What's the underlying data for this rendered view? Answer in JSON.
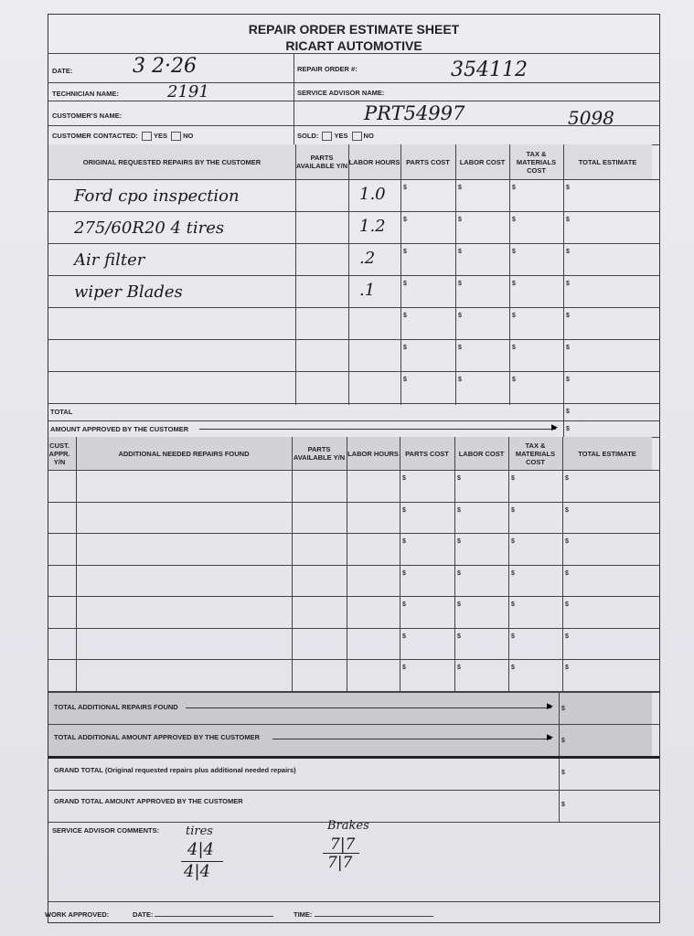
{
  "title": "REPAIR ORDER ESTIMATE SHEET",
  "company": "RICART AUTOMOTIVE",
  "fields": {
    "date_label": "DATE:",
    "date_value": "3 2·26",
    "repair_order_label": "REPAIR ORDER #:",
    "repair_order_value": "354112",
    "technician_label": "TECHNICIAN NAME:",
    "technician_value": "2191",
    "service_advisor_label": "SERVICE ADVISOR NAME:",
    "customer_label": "CUSTOMER'S NAME:",
    "customer_note_1": "PRT54997",
    "customer_note_2": "5098",
    "contacted_label": "CUSTOMER CONTACTED:",
    "sold_label": "SOLD:",
    "yes": "YES",
    "no": "NO"
  },
  "original": {
    "headers": [
      "ORIGINAL REQUESTED REPAIRS BY THE CUSTOMER",
      "PARTS AVAILABLE Y/N",
      "LABOR HOURS",
      "PARTS COST",
      "LABOR COST",
      "TAX & MATERIALS COST",
      "TOTAL ESTIMATE"
    ],
    "rows": [
      {
        "desc": "Ford cpo inspection",
        "hours": "1.0"
      },
      {
        "desc": "275/60R20 4 tires",
        "hours": "1.2"
      },
      {
        "desc": "Air filter",
        "hours": ".2"
      },
      {
        "desc": "wiper Blades",
        "hours": ".1"
      },
      {
        "desc": "",
        "hours": ""
      },
      {
        "desc": "",
        "hours": ""
      },
      {
        "desc": "",
        "hours": ""
      }
    ],
    "total_label": "TOTAL",
    "approved_label": "AMOUNT APPROVED BY THE CUSTOMER"
  },
  "additional": {
    "headers": [
      "CUST. APPR. Y/N",
      "ADDITIONAL NEEDED REPAIRS FOUND",
      "PARTS AVAILABLE Y/N",
      "LABOR HOURS",
      "PARTS COST",
      "LABOR COST",
      "TAX & MATERIALS COST",
      "TOTAL ESTIMATE"
    ],
    "row_count": 7,
    "total_found_label": "TOTAL ADDITIONAL REPAIRS FOUND",
    "total_approved_label": "TOTAL ADDITIONAL AMOUNT APPROVED BY THE CUSTOMER"
  },
  "currency_symbol": "$",
  "grand_total_label": "GRAND TOTAL (Original requested repairs plus additional needed repairs)",
  "grand_total_approved_label": "GRAND TOTAL AMOUNT APPROVED BY THE CUSTOMER",
  "comments": {
    "label": "SERVICE ADVISOR COMMENTS:",
    "tires_label": "tires",
    "tires_top": "4|4",
    "tires_bottom": "4|4",
    "brakes_label": "Brakes",
    "brakes_top": "7|7",
    "brakes_bottom": "7|7"
  },
  "footer": {
    "work_approved": "WORK APPROVED:",
    "date": "DATE:",
    "time": "TIME:"
  }
}
